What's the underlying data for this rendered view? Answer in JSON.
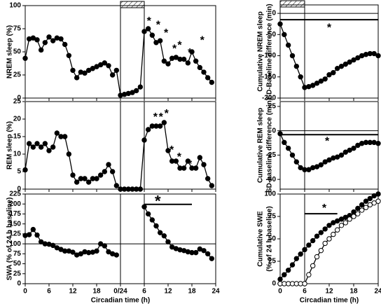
{
  "chart_data": [
    {
      "type": "line",
      "ylabel": [
        "NREM sleep (%)"
      ],
      "xlim": [
        0,
        48
      ],
      "xticks": [
        0,
        6,
        12,
        18,
        24,
        30,
        36,
        42,
        48
      ],
      "ylim": [
        0,
        100
      ],
      "yticks": [
        0,
        25,
        50,
        75,
        100
      ],
      "vlines": [
        24,
        30
      ],
      "sd_bar": [
        24,
        30
      ],
      "x": [
        0,
        1,
        2,
        3,
        4,
        5,
        6,
        7,
        8,
        9,
        10,
        11,
        12,
        13,
        14,
        15,
        16,
        17,
        18,
        19,
        20,
        21,
        22,
        23,
        24,
        25,
        26,
        27,
        28,
        29,
        30,
        31,
        32,
        33,
        34,
        35,
        36,
        37,
        38,
        39,
        40,
        41,
        42,
        43,
        44,
        45,
        46,
        47
      ],
      "series": [
        {
          "color": "#000",
          "filled": true,
          "values": [
            43,
            64,
            65,
            63,
            52,
            60,
            66,
            62,
            65,
            64,
            58,
            46,
            30,
            22,
            28,
            27,
            30,
            32,
            34,
            36,
            38,
            35,
            25,
            30,
            3,
            4,
            5,
            6,
            8,
            12,
            72,
            75,
            68,
            60,
            62,
            40,
            37,
            43,
            44,
            42,
            42,
            38,
            50,
            40,
            33,
            28,
            22,
            17
          ]
        }
      ],
      "annotations": [
        {
          "text": "*",
          "x": 31.2,
          "y": 85
        },
        {
          "text": "*",
          "x": 33.5,
          "y": 81
        },
        {
          "text": "*",
          "x": 35.5,
          "y": 72
        },
        {
          "text": "*",
          "x": 37.6,
          "y": 55
        },
        {
          "text": "*",
          "x": 38.9,
          "y": 59
        },
        {
          "text": "*",
          "x": 41.5,
          "y": 51
        },
        {
          "text": "*",
          "x": 44.6,
          "y": 64
        }
      ]
    },
    {
      "type": "line",
      "ylabel": [
        "REM sleep (%)"
      ],
      "xlim": [
        0,
        48
      ],
      "xticks": [
        0,
        6,
        12,
        18,
        24,
        30,
        36,
        42,
        48
      ],
      "ylim": [
        0,
        25
      ],
      "yticks": [
        0,
        5,
        10,
        15,
        20,
        25
      ],
      "vlines": [
        24,
        30
      ],
      "x": [
        0,
        1,
        2,
        3,
        4,
        5,
        6,
        7,
        8,
        9,
        10,
        11,
        12,
        13,
        14,
        15,
        16,
        17,
        18,
        19,
        20,
        21,
        22,
        23,
        24,
        25,
        26,
        27,
        28,
        29,
        30,
        31,
        32,
        33,
        34,
        35,
        36,
        37,
        38,
        39,
        40,
        41,
        42,
        43,
        44,
        45,
        46,
        47
      ],
      "series": [
        {
          "color": "#000",
          "filled": true,
          "values": [
            5.5,
            13,
            12,
            13,
            12,
            13,
            11,
            12,
            16,
            15,
            15,
            10,
            4,
            2,
            3,
            3,
            2,
            3,
            3,
            4,
            5,
            7,
            5,
            1,
            0,
            0,
            0,
            0,
            0,
            0,
            14,
            17,
            18,
            18,
            18,
            19,
            11,
            8,
            8,
            6,
            6,
            8,
            6,
            6,
            9,
            7,
            3,
            1
          ]
        }
      ],
      "annotations": [
        {
          "text": "*",
          "x": 32.8,
          "y": 21
        },
        {
          "text": "*",
          "x": 34.2,
          "y": 21
        },
        {
          "text": "*",
          "x": 35.6,
          "y": 22
        },
        {
          "text": "*",
          "x": 36.9,
          "y": 11.6
        },
        {
          "text": "*",
          "x": 38.8,
          "y": 9.6
        },
        {
          "text": "*",
          "x": 41.5,
          "y": 7.6
        }
      ]
    },
    {
      "type": "line",
      "ylabel": [
        "SWA (% of 24 h baseline)"
      ],
      "xlabel": "Circadian time (h)",
      "xlim": [
        0,
        48
      ],
      "xticks": [
        0,
        6,
        12,
        18,
        {
          "value": 24,
          "label": "0/24"
        },
        {
          "value": 30,
          "label": "6"
        },
        {
          "value": 36,
          "label": "12"
        },
        {
          "value": 42,
          "label": "18"
        },
        {
          "value": 48,
          "label": "24"
        }
      ],
      "ylim": [
        0,
        225
      ],
      "yticks": [
        0,
        25,
        50,
        75,
        100,
        125,
        150,
        175,
        200,
        225
      ],
      "vlines": [
        24,
        30
      ],
      "hlines": [
        100
      ],
      "sig_bars": [
        {
          "y": 199,
          "x": [
            30,
            42
          ]
        }
      ],
      "x": [
        0,
        1,
        2,
        3,
        4,
        5,
        6,
        7,
        8,
        9,
        10,
        11,
        12,
        13,
        14,
        15,
        16,
        17,
        18,
        19,
        20,
        21,
        22,
        23,
        24,
        25,
        26,
        27,
        28,
        29,
        30,
        31,
        32,
        33,
        34,
        35,
        36,
        37,
        38,
        39,
        40,
        41,
        42,
        43,
        44,
        45,
        46,
        47
      ],
      "series": [
        {
          "color": "#000",
          "filled": true,
          "values": [
            121,
            123,
            136,
            122,
            105,
            100,
            99,
            96,
            90,
            86,
            82,
            82,
            79,
            72,
            75,
            80,
            78,
            79,
            82,
            100,
            95,
            80,
            75,
            72,
            null,
            null,
            null,
            null,
            null,
            null,
            193,
            175,
            160,
            145,
            128,
            120,
            105,
            92,
            88,
            85,
            83,
            80,
            78,
            78,
            87,
            83,
            75,
            63
          ]
        }
      ],
      "annotations": [
        {
          "text": "*",
          "x": 33.4,
          "y": 213,
          "big": true
        }
      ]
    },
    {
      "type": "line",
      "ylabel": [
        "Cumulative NREM sleep",
        "SD-Baseline difference (min)"
      ],
      "xlim": [
        0,
        24
      ],
      "xticks": [
        0,
        6,
        12,
        18,
        24
      ],
      "ylim": [
        -200,
        20
      ],
      "yticks": [
        -200,
        -150,
        -100,
        -50,
        0
      ],
      "vlines": [
        6
      ],
      "hlines": [
        0
      ],
      "sd_bar": [
        0,
        6
      ],
      "sig_bars": [
        {
          "y": -15,
          "x": [
            0,
            24
          ]
        }
      ],
      "x": [
        0,
        1,
        2,
        3,
        4,
        5,
        6,
        7,
        8,
        9,
        10,
        11,
        12,
        13,
        14,
        15,
        16,
        17,
        18,
        19,
        20,
        21,
        22,
        23,
        24
      ],
      "series": [
        {
          "color": "#000",
          "filled": true,
          "values": [
            -25,
            -50,
            -75,
            -100,
            -125,
            -150,
            -175,
            -173,
            -170,
            -165,
            -160,
            -155,
            -145,
            -140,
            -130,
            -125,
            -120,
            -115,
            -110,
            -105,
            -100,
            -97,
            -95,
            -95,
            -100
          ]
        }
      ],
      "annotations": [
        {
          "text": "*",
          "x": 12,
          "y": -30
        }
      ]
    },
    {
      "type": "line",
      "ylabel": [
        "Cumulative REM sleep",
        "SD-baseline difference (min)"
      ],
      "xlim": [
        0,
        24
      ],
      "xticks": [
        0,
        6,
        12,
        18,
        24
      ],
      "ylim": [
        -60,
        30
      ],
      "yticks": [
        -50,
        -25,
        0,
        25
      ],
      "vlines": [
        6
      ],
      "hlines": [
        0
      ],
      "sig_bars": [
        {
          "y": -4,
          "x": [
            0,
            24
          ]
        }
      ],
      "x": [
        0,
        1,
        2,
        3,
        4,
        5,
        6,
        7,
        8,
        9,
        10,
        11,
        12,
        13,
        14,
        15,
        16,
        17,
        18,
        19,
        20,
        21,
        22,
        23,
        24
      ],
      "series": [
        {
          "color": "#000",
          "filled": true,
          "values": [
            -3,
            -12,
            -18,
            -25,
            -32,
            -38,
            -40,
            -40,
            -38,
            -37,
            -35,
            -32,
            -30,
            -28,
            -27,
            -25,
            -22,
            -20,
            -18,
            -15,
            -13,
            -12,
            -12,
            -12,
            -13
          ]
        }
      ],
      "annotations": [
        {
          "text": "*",
          "x": 11.5,
          "y": -9
        }
      ]
    },
    {
      "type": "line",
      "ylabel": [
        "Cumulative SWE",
        "(% of 24 h baseline)"
      ],
      "xlabel": "Circadian time (h)",
      "xlim": [
        0,
        24
      ],
      "xticks": [
        0,
        6,
        12,
        18,
        24
      ],
      "ylim": [
        0,
        100
      ],
      "yticks": [
        0,
        25,
        50,
        75,
        100
      ],
      "vlines": [
        6
      ],
      "sig_bars": [
        {
          "y": 78,
          "x": [
            6,
            14
          ]
        }
      ],
      "x": [
        0,
        1,
        2,
        3,
        4,
        5,
        6,
        7,
        8,
        9,
        10,
        11,
        12,
        13,
        14,
        15,
        16,
        17,
        18,
        19,
        20,
        21,
        22,
        23,
        24
      ],
      "series": [
        {
          "color": "#000",
          "filled": true,
          "values": [
            5,
            10,
            15,
            21,
            28,
            33,
            38,
            43,
            48,
            53,
            57,
            61,
            65,
            68,
            70,
            72,
            74,
            76,
            80,
            84,
            88,
            92,
            95,
            98,
            100
          ]
        },
        {
          "color": "#000",
          "filled": false,
          "values": [
            0,
            0,
            0,
            0,
            0,
            0,
            0,
            10,
            20,
            30,
            37,
            45,
            50,
            55,
            60,
            65,
            68,
            72,
            75,
            78,
            82,
            85,
            88,
            90,
            92
          ]
        }
      ],
      "annotations": [
        {
          "text": "*",
          "x": 10.8,
          "y": 86
        }
      ]
    }
  ]
}
